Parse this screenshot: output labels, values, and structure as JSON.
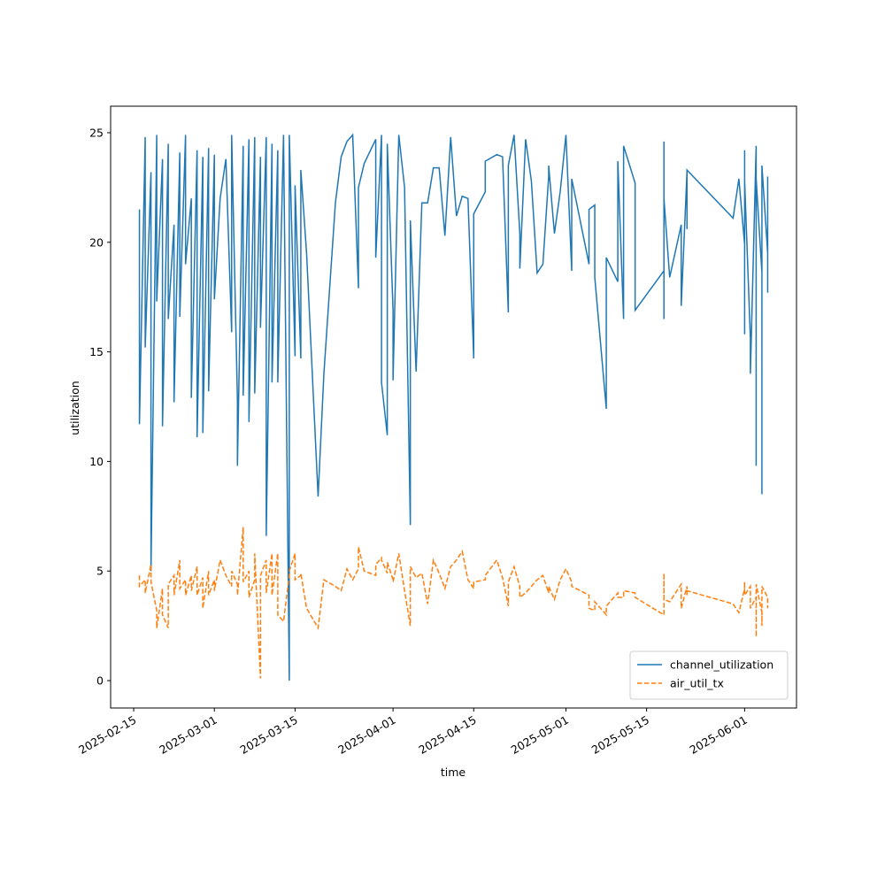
{
  "chart_data": {
    "type": "line",
    "xlabel": "time",
    "ylabel": "utilization",
    "x": [
      "2025-02-16",
      "2025-02-16",
      "2025-02-17",
      "2025-02-17",
      "2025-02-18",
      "2025-02-18",
      "2025-02-19",
      "2025-02-19",
      "2025-02-20",
      "2025-02-20",
      "2025-02-21",
      "2025-02-21",
      "2025-02-22",
      "2025-02-22",
      "2025-02-23",
      "2025-02-23",
      "2025-02-24",
      "2025-02-24",
      "2025-02-25",
      "2025-02-25",
      "2025-02-26",
      "2025-02-26",
      "2025-02-27",
      "2025-02-27",
      "2025-02-28",
      "2025-02-28",
      "2025-03-01",
      "2025-03-01",
      "2025-03-02",
      "2025-03-03",
      "2025-03-04",
      "2025-03-04",
      "2025-03-05",
      "2025-03-05",
      "2025-03-06",
      "2025-03-06",
      "2025-03-07",
      "2025-03-07",
      "2025-03-08",
      "2025-03-08",
      "2025-03-09",
      "2025-03-09",
      "2025-03-10",
      "2025-03-10",
      "2025-03-11",
      "2025-03-11",
      "2025-03-12",
      "2025-03-12",
      "2025-03-13",
      "2025-03-14",
      "2025-03-14",
      "2025-03-15",
      "2025-03-15",
      "2025-03-16",
      "2025-03-16",
      "2025-03-17",
      "2025-03-19",
      "2025-03-20",
      "2025-03-22",
      "2025-03-23",
      "2025-03-24",
      "2025-03-25",
      "2025-03-26",
      "2025-03-26",
      "2025-03-27",
      "2025-03-29",
      "2025-03-29",
      "2025-03-30",
      "2025-03-30",
      "2025-03-31",
      "2025-03-31",
      "2025-04-01",
      "2025-04-01",
      "2025-04-02",
      "2025-04-03",
      "2025-04-04",
      "2025-04-04",
      "2025-04-05",
      "2025-04-06",
      "2025-04-07",
      "2025-04-08",
      "2025-04-09",
      "2025-04-10",
      "2025-04-11",
      "2025-04-12",
      "2025-04-13",
      "2025-04-14",
      "2025-04-15",
      "2025-04-15",
      "2025-04-17",
      "2025-04-17",
      "2025-04-19",
      "2025-04-20",
      "2025-04-21",
      "2025-04-21",
      "2025-04-22",
      "2025-04-23",
      "2025-04-23",
      "2025-04-24",
      "2025-04-25",
      "2025-04-26",
      "2025-04-27",
      "2025-04-28",
      "2025-04-28",
      "2025-04-29",
      "2025-04-30",
      "2025-05-01",
      "2025-05-02",
      "2025-05-02",
      "2025-05-05",
      "2025-05-05",
      "2025-05-06",
      "2025-05-06",
      "2025-05-08",
      "2025-05-08",
      "2025-05-10",
      "2025-05-10",
      "2025-05-11",
      "2025-05-11",
      "2025-05-13",
      "2025-05-13",
      "2025-05-18",
      "2025-05-18",
      "2025-05-18",
      "2025-05-18",
      "2025-05-18",
      "2025-05-19",
      "2025-05-21",
      "2025-05-21",
      "2025-05-22",
      "2025-05-22",
      "2025-05-22",
      "2025-05-30",
      "2025-05-31",
      "2025-06-01",
      "2025-06-01",
      "2025-06-01",
      "2025-06-01",
      "2025-06-02",
      "2025-06-02",
      "2025-06-03",
      "2025-06-03",
      "2025-06-03",
      "2025-06-04",
      "2025-06-04",
      "2025-06-04",
      "2025-06-05",
      "2025-06-05",
      "2025-06-05"
    ],
    "series": [
      {
        "name": "channel_utilization",
        "color": "#1f77b4",
        "linestyle": "solid",
        "values": [
          21.5,
          11.7,
          24.8,
          15.2,
          23.2,
          5.0,
          24.9,
          17.3,
          23.8,
          11.6,
          24.5,
          16.5,
          20.8,
          12.7,
          24.1,
          16.6,
          24.9,
          19.0,
          22.0,
          12.9,
          24.2,
          11.1,
          23.9,
          11.3,
          24.3,
          13.2,
          24.0,
          17.4,
          22.0,
          23.8,
          15.9,
          24.9,
          12.8,
          9.8,
          24.4,
          13.0,
          24.7,
          11.8,
          24.8,
          13.1,
          23.9,
          16.1,
          24.8,
          6.6,
          24.5,
          13.6,
          24.2,
          13.6,
          24.9,
          0.0,
          24.9,
          14.8,
          22.6,
          14.7,
          23.3,
          19.5,
          8.4,
          14.0,
          21.8,
          23.9,
          24.6,
          24.9,
          17.9,
          22.5,
          23.6,
          24.7,
          19.3,
          24.9,
          13.6,
          11.2,
          24.5,
          16.9,
          13.7,
          24.9,
          22.5,
          7.1,
          21.0,
          14.1,
          21.8,
          21.8,
          23.4,
          23.4,
          20.3,
          24.8,
          21.2,
          22.1,
          22.0,
          14.7,
          21.3,
          22.3,
          23.7,
          24.0,
          23.9,
          16.8,
          23.5,
          24.9,
          20.4,
          18.8,
          24.7,
          22.8,
          18.6,
          19.0,
          23.0,
          23.5,
          20.4,
          22.3,
          24.9,
          18.7,
          22.9,
          19.0,
          21.5,
          21.7,
          18.4,
          12.4,
          19.3,
          18.2,
          23.7,
          16.5,
          24.4,
          22.7,
          16.9,
          18.7,
          16.5,
          24.6,
          21.2,
          22.0,
          18.4,
          20.8,
          17.1,
          23.2,
          20.6,
          23.3,
          21.1,
          22.9,
          19.9,
          24.2,
          15.8,
          22.8,
          15.6,
          14.0,
          24.4,
          9.8,
          22.9,
          18.6,
          8.5,
          23.5,
          19.5,
          17.7,
          23.0
        ]
      },
      {
        "name": "air_util_tx",
        "color": "#ff7f0e",
        "linestyle": "dashed",
        "values": [
          4.8,
          4.3,
          4.6,
          4.0,
          5.3,
          4.5,
          3.2,
          2.4,
          4.2,
          3.0,
          2.4,
          4.4,
          4.8,
          3.9,
          5.5,
          4.2,
          4.6,
          3.9,
          4.8,
          4.1,
          5.2,
          3.9,
          4.7,
          3.3,
          5.0,
          3.9,
          4.6,
          4.1,
          5.5,
          4.8,
          4.3,
          5.0,
          4.4,
          3.9,
          7.0,
          4.5,
          5.0,
          3.8,
          4.6,
          5.8,
          0.1,
          4.8,
          5.5,
          4.0,
          5.8,
          3.9,
          5.8,
          3.0,
          2.7,
          4.8,
          5.0,
          5.8,
          4.6,
          4.8,
          4.9,
          3.3,
          2.4,
          4.6,
          4.3,
          4.1,
          5.1,
          4.6,
          5.1,
          6.1,
          5.0,
          4.8,
          5.3,
          5.6,
          5.5,
          4.9,
          5.4,
          4.6,
          4.5,
          5.8,
          4.1,
          2.5,
          5.2,
          4.7,
          4.9,
          3.5,
          5.5,
          4.9,
          4.2,
          5.2,
          5.5,
          5.9,
          4.6,
          4.2,
          4.5,
          4.6,
          4.8,
          5.5,
          4.7,
          3.4,
          4.5,
          5.2,
          4.3,
          3.8,
          4.0,
          4.3,
          4.6,
          4.8,
          4.0,
          4.3,
          3.7,
          4.6,
          5.1,
          4.5,
          4.3,
          3.9,
          3.3,
          3.2,
          3.6,
          3.0,
          3.4,
          4.0,
          3.8,
          3.8,
          4.1,
          4.0,
          3.8,
          3.0,
          3.3,
          4.9,
          4.2,
          3.7,
          3.6,
          4.4,
          3.3,
          4.3,
          3.9,
          4.1,
          3.5,
          3.1,
          4.2,
          4.5,
          4.0,
          3.9,
          4.3,
          3.3,
          3.8,
          2.0,
          4.4,
          3.1,
          2.5,
          4.3,
          3.8,
          3.3,
          3.4
        ]
      }
    ],
    "xlim": [
      "2025-02-11",
      "2025-06-10"
    ],
    "xticks": [
      "2025-02-15",
      "2025-03-01",
      "2025-03-15",
      "2025-04-01",
      "2025-04-15",
      "2025-05-01",
      "2025-05-15",
      "2025-06-01"
    ],
    "ylim": [
      -1.25,
      26.21
    ],
    "yticks": [
      0,
      5,
      10,
      15,
      20,
      25
    ],
    "grid": false,
    "legend": "lower right"
  }
}
